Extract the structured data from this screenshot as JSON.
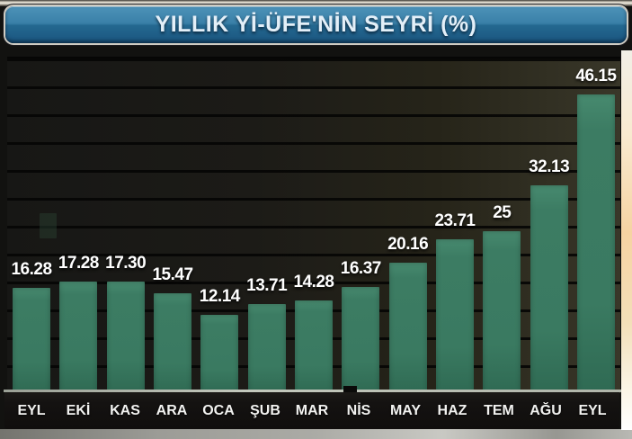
{
  "header": {
    "title": "YILLIK Yİ-ÜFE'NİN SEYRİ (%)"
  },
  "chart_data": {
    "type": "bar",
    "title": "YILLIK Yİ-ÜFE'NİN SEYRİ (%)",
    "categories": [
      "EYL",
      "EKİ",
      "KAS",
      "ARA",
      "OCA",
      "ŞUB",
      "MAR",
      "NİS",
      "MAY",
      "HAZ",
      "TEM",
      "AĞU",
      "EYL"
    ],
    "values": [
      16.28,
      17.28,
      17.3,
      15.47,
      12.14,
      13.71,
      14.28,
      16.37,
      20.16,
      23.71,
      25,
      32.13,
      46.15
    ],
    "value_labels": [
      "16.28",
      "17.28",
      "17.30",
      "15.47",
      "12.14",
      "13.71",
      "14.28",
      "16.37",
      "20.16",
      "23.71",
      "25",
      "32.13",
      "46.15"
    ],
    "xlabel": "",
    "ylabel": "",
    "ylim": [
      0,
      52
    ],
    "grid": "horizontal",
    "legend": "none",
    "colors": {
      "bar": "#3c7c63",
      "plot_background": "#1c1b17",
      "value_label": "#ffffff",
      "month_label": "#f2f2f0",
      "banner_blue": "#2a6f9a",
      "banner_text": "#e3eff8"
    }
  }
}
